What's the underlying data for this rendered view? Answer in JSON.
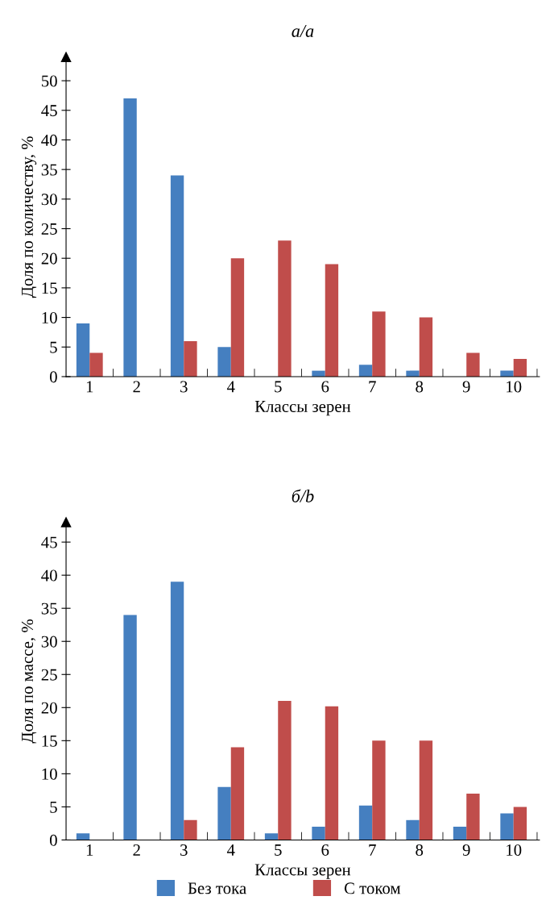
{
  "chart_data": [
    {
      "type": "bar",
      "title": "а/a",
      "xlabel": "Классы зерен",
      "ylabel": "Доля по количеству, %",
      "categories": [
        "1",
        "2",
        "3",
        "4",
        "5",
        "6",
        "7",
        "8",
        "9",
        "10"
      ],
      "series": [
        {
          "color": "#457fc0",
          "values": [
            9,
            47,
            34,
            5,
            0,
            1,
            2,
            1,
            0,
            1
          ]
        },
        {
          "color": "#c04d4b",
          "values": [
            4,
            0,
            6,
            20,
            23,
            19,
            11,
            10,
            4,
            3
          ]
        }
      ],
      "ylim": [
        0,
        54
      ],
      "yticks": [
        0,
        5,
        10,
        15,
        20,
        25,
        30,
        35,
        40,
        45,
        50
      ],
      "grid": false,
      "legend": false
    },
    {
      "type": "bar",
      "title": "б/b",
      "xlabel": "Классы зерен",
      "ylabel": "Доля по массе, %",
      "categories": [
        "1",
        "2",
        "3",
        "4",
        "5",
        "6",
        "7",
        "8",
        "9",
        "10"
      ],
      "series": [
        {
          "name": "Без тока",
          "color": "#457fc0",
          "values": [
            1,
            34,
            39,
            8,
            1,
            2,
            5.2,
            3,
            2,
            4
          ]
        },
        {
          "name": "С током",
          "color": "#c04d4b",
          "values": [
            0,
            0,
            3,
            14,
            21,
            20.2,
            15,
            15,
            7,
            5
          ]
        }
      ],
      "ylim": [
        0,
        48
      ],
      "yticks": [
        0,
        5,
        10,
        15,
        20,
        25,
        30,
        35,
        40,
        45
      ],
      "grid": false,
      "legend": "bottom"
    }
  ]
}
